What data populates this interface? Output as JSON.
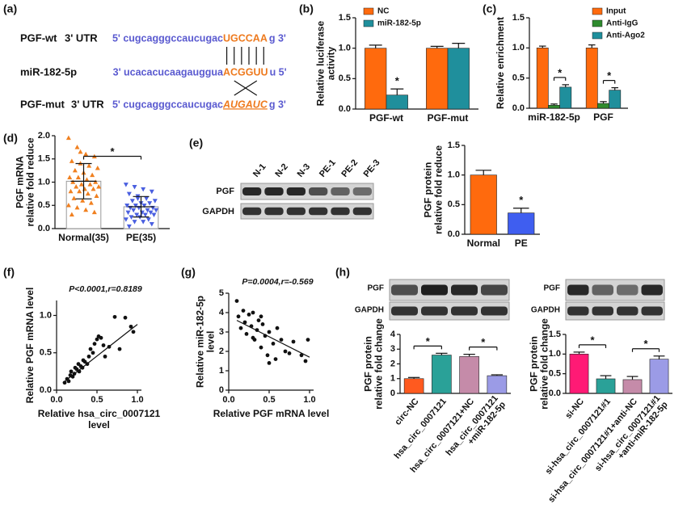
{
  "panel_labels": [
    "(a)",
    "(b)",
    "(c)",
    "(d)",
    "(e)",
    "(f)",
    "(g)",
    "(h)"
  ],
  "sequence": {
    "rows": [
      {
        "name": "PGF-wt",
        "region": "3' UTR",
        "prefix": "5' cugcagggccaucugac",
        "site": "UGCCAA",
        "suffix": "g 3'"
      },
      {
        "name": "miR-182-5p",
        "prefix": "3' ucacacucaagauggua",
        "site": "ACGGUU",
        "suffix": "u 5'"
      },
      {
        "name": "PGF-mut",
        "region": "3' UTR",
        "prefix": "5' cugcagggccaucugac",
        "site": "AUGAUC",
        "suffix": "g 3'"
      }
    ]
  },
  "blots": {
    "e": {
      "lanes": [
        "N-1",
        "N-2",
        "N-3",
        "PE-1",
        "PE-2",
        "PE-3"
      ],
      "bands": [
        "PGF",
        "GAPDH"
      ]
    },
    "h_left": {
      "bands": [
        "PGF",
        "GAPDH"
      ]
    },
    "h_right": {
      "bands": [
        "PGF",
        "GAPDH"
      ]
    }
  },
  "chart_data": [
    {
      "type": "bar",
      "ylabel": "Relative luciferase\nactivity",
      "categories": [
        "PGF-wt",
        "PGF-mut"
      ],
      "series": [
        {
          "name": "NC",
          "color": "#ff6a0d",
          "values": [
            1.0,
            1.0
          ],
          "errors": [
            0.05,
            0.03
          ]
        },
        {
          "name": "miR-182-5p",
          "color": "#1f8f9c",
          "values": [
            0.23,
            1.0
          ],
          "errors": [
            0.1,
            0.08
          ]
        }
      ],
      "ylim": [
        0,
        1.5
      ],
      "yticks": [
        {
          "value": 0,
          "label": "0.0"
        },
        0.5,
        {
          "value": 1,
          "label": "1.0"
        },
        1.5
      ],
      "legend": "upper left",
      "significance": [
        "*"
      ]
    },
    {
      "type": "bar",
      "ylabel": "Relative enrichment",
      "categories": [
        "miR-182-5p",
        "PGF"
      ],
      "series": [
        {
          "name": "Input",
          "color": "#ff6a0d",
          "values": [
            1.0,
            1.0
          ],
          "errors": [
            0.03,
            0.05
          ]
        },
        {
          "name": "Anti-IgG",
          "color": "#2e8b2e",
          "values": [
            0.05,
            0.08
          ],
          "errors": [
            0.02,
            0.03
          ]
        },
        {
          "name": "Anti-Ago2",
          "color": "#1f8f9c",
          "values": [
            0.35,
            0.3
          ],
          "errors": [
            0.04,
            0.04
          ]
        }
      ],
      "ylim": [
        0,
        1.5
      ],
      "yticks": [
        {
          "value": 0,
          "label": "0.0"
        },
        0.5,
        {
          "value": 1,
          "label": "1.0"
        },
        1.5
      ],
      "legend": "upper right",
      "significance": [
        "*",
        "*"
      ]
    },
    {
      "type": "dot",
      "ylabel": "PGF mRNA\nrelative fold reduce",
      "categories": [
        "Normal(35)",
        "PE(35)"
      ],
      "values": [
        1.02,
        0.47
      ],
      "errors": [
        0.38,
        0.22
      ],
      "colors": [
        "#f08020",
        "#4a5fe0"
      ],
      "markers": [
        "triangle-up",
        "triangle-down"
      ],
      "points": [
        [
          1.95,
          1.75,
          1.6,
          1.55,
          1.45,
          1.4,
          1.35,
          1.3,
          1.25,
          1.2,
          1.15,
          1.1,
          1.1,
          1.05,
          1.0,
          1.0,
          0.95,
          0.95,
          0.9,
          0.9,
          0.85,
          0.85,
          0.8,
          0.8,
          0.75,
          0.7,
          0.65,
          0.6,
          0.55,
          0.5,
          0.45,
          0.4,
          0.35,
          0.3,
          1.65
        ],
        [
          0.95,
          0.9,
          0.85,
          0.8,
          0.75,
          0.7,
          0.65,
          0.6,
          0.6,
          0.55,
          0.55,
          0.5,
          0.5,
          0.5,
          0.45,
          0.45,
          0.45,
          0.4,
          0.4,
          0.4,
          0.35,
          0.35,
          0.35,
          0.3,
          0.3,
          0.3,
          0.25,
          0.25,
          0.2,
          0.2,
          0.15,
          0.15,
          0.1,
          0.05,
          0.65
        ]
      ],
      "ylim": [
        0,
        2
      ],
      "yticks": [
        {
          "value": 0,
          "label": "0.0"
        },
        0.5,
        {
          "value": 1,
          "label": "1.0"
        },
        1.5,
        {
          "value": 2,
          "label": "2.0"
        }
      ],
      "significance": [
        "*"
      ]
    },
    {
      "type": "bar",
      "ylabel": "PGF protein\nrelative fold reduce",
      "categories": [
        "Normal",
        "PE"
      ],
      "values": [
        1.0,
        0.36
      ],
      "errors": [
        0.08,
        0.08
      ],
      "colors": [
        "#ff6a0d",
        "#3f5ef0"
      ],
      "ylim": [
        0,
        1.5
      ],
      "yticks": [
        {
          "value": 0,
          "label": "0.0"
        },
        0.5,
        {
          "value": 1,
          "label": "1.0"
        },
        1.5
      ],
      "significance": [
        "*"
      ]
    },
    {
      "type": "scatter",
      "title": "P<0.0001,r=0.8189",
      "xlabel": "Relative hsa_circ_0007121\nlevel",
      "ylabel": "Relative PGF mRNA level",
      "x": [
        0.1,
        0.13,
        0.15,
        0.17,
        0.18,
        0.2,
        0.22,
        0.23,
        0.25,
        0.27,
        0.28,
        0.3,
        0.32,
        0.33,
        0.35,
        0.38,
        0.4,
        0.42,
        0.45,
        0.47,
        0.5,
        0.52,
        0.55,
        0.58,
        0.6,
        0.65,
        0.72,
        0.78,
        0.85,
        0.92,
        0.95
      ],
      "values": [
        0.1,
        0.15,
        0.12,
        0.2,
        0.25,
        0.18,
        0.22,
        0.3,
        0.28,
        0.35,
        0.25,
        0.32,
        0.3,
        0.4,
        0.38,
        0.35,
        0.45,
        0.55,
        0.5,
        0.62,
        0.68,
        0.72,
        0.7,
        0.6,
        0.45,
        0.58,
        0.98,
        0.55,
        0.97,
        0.85,
        0.78
      ],
      "color": "#111111",
      "fit": {
        "x": [
          0.08,
          1.0
        ],
        "values": [
          0.1,
          0.88
        ]
      },
      "xlim": [
        0,
        1.05
      ],
      "xticks": [
        {
          "value": 0,
          "label": "0.0"
        },
        0.5,
        {
          "value": 1,
          "label": "1.0"
        }
      ],
      "ylim": [
        0,
        1.2
      ],
      "yticks": [
        {
          "value": 0,
          "label": "0.0"
        },
        0.5,
        {
          "value": 1,
          "label": "1.0"
        }
      ]
    },
    {
      "type": "scatter",
      "title": "P=0.0004,r=-0.569",
      "xlabel": "Relative PGF mRNA level",
      "ylabel": "Relative miR-182-5p\nlevel",
      "x": [
        0.1,
        0.12,
        0.15,
        0.18,
        0.2,
        0.22,
        0.25,
        0.28,
        0.3,
        0.32,
        0.35,
        0.37,
        0.4,
        0.42,
        0.45,
        0.48,
        0.5,
        0.55,
        0.58,
        0.6,
        0.65,
        0.7,
        0.75,
        0.8,
        0.9,
        0.95,
        0.98,
        0.3,
        0.4,
        0.5
      ],
      "values": [
        4.6,
        3.8,
        3.2,
        4.1,
        3.5,
        2.9,
        3.9,
        3.3,
        4.0,
        2.6,
        3.1,
        3.6,
        2.2,
        3.4,
        2.8,
        1.8,
        3.0,
        2.4,
        1.6,
        3.2,
        2.6,
        2.0,
        1.9,
        2.5,
        1.8,
        1.5,
        2.6,
        2.7,
        3.8,
        1.4
      ],
      "color": "#111111",
      "fit": {
        "x": [
          0.1,
          1.0
        ],
        "values": [
          3.6,
          1.7
        ]
      },
      "xlim": [
        0,
        1.05
      ],
      "xticks": [
        {
          "value": 0,
          "label": "0.0"
        },
        0.5,
        {
          "value": 1,
          "label": "1.0"
        }
      ],
      "ylim": [
        0,
        5
      ],
      "yticks": [
        0,
        1,
        2,
        3,
        4,
        5
      ]
    },
    {
      "type": "bar",
      "ylabel": "PGF protein\nrelative fold change",
      "categories": [
        "circ-NC",
        "hsa_circ_0007121",
        "hsa_circ_0007121+NC",
        "hsa_circ_0007121\n+miR-182-5p"
      ],
      "values": [
        1.0,
        2.6,
        2.5,
        1.2
      ],
      "errors": [
        0.08,
        0.12,
        0.15,
        0.06
      ],
      "colors": [
        "#ff5a1f",
        "#2aa198",
        "#c58ba9",
        "#9b9be6"
      ],
      "ylim": [
        0,
        4
      ],
      "yticks": [
        0,
        1,
        2,
        3,
        4
      ],
      "significance": [
        "*",
        "*"
      ]
    },
    {
      "type": "bar",
      "ylabel": "PGF protein\nrelative fold change",
      "categories": [
        "si-NC",
        "si-hsa_circ_0007121#1",
        "si-hsa_circ_0007121#1+anti-NC",
        "si-hsa_circ_0007121#1\n+anti-miR-182-5p"
      ],
      "values": [
        1.0,
        0.37,
        0.35,
        0.87
      ],
      "errors": [
        0.05,
        0.08,
        0.08,
        0.08
      ],
      "colors": [
        "#ff1a75",
        "#2aa198",
        "#c58ba9",
        "#9b9be6"
      ],
      "ylim": [
        0,
        1.5
      ],
      "yticks": [
        {
          "value": 0,
          "label": "0.0"
        },
        0.5,
        {
          "value": 1,
          "label": "1.0"
        },
        1.5
      ],
      "significance": [
        "*",
        "*"
      ]
    }
  ]
}
